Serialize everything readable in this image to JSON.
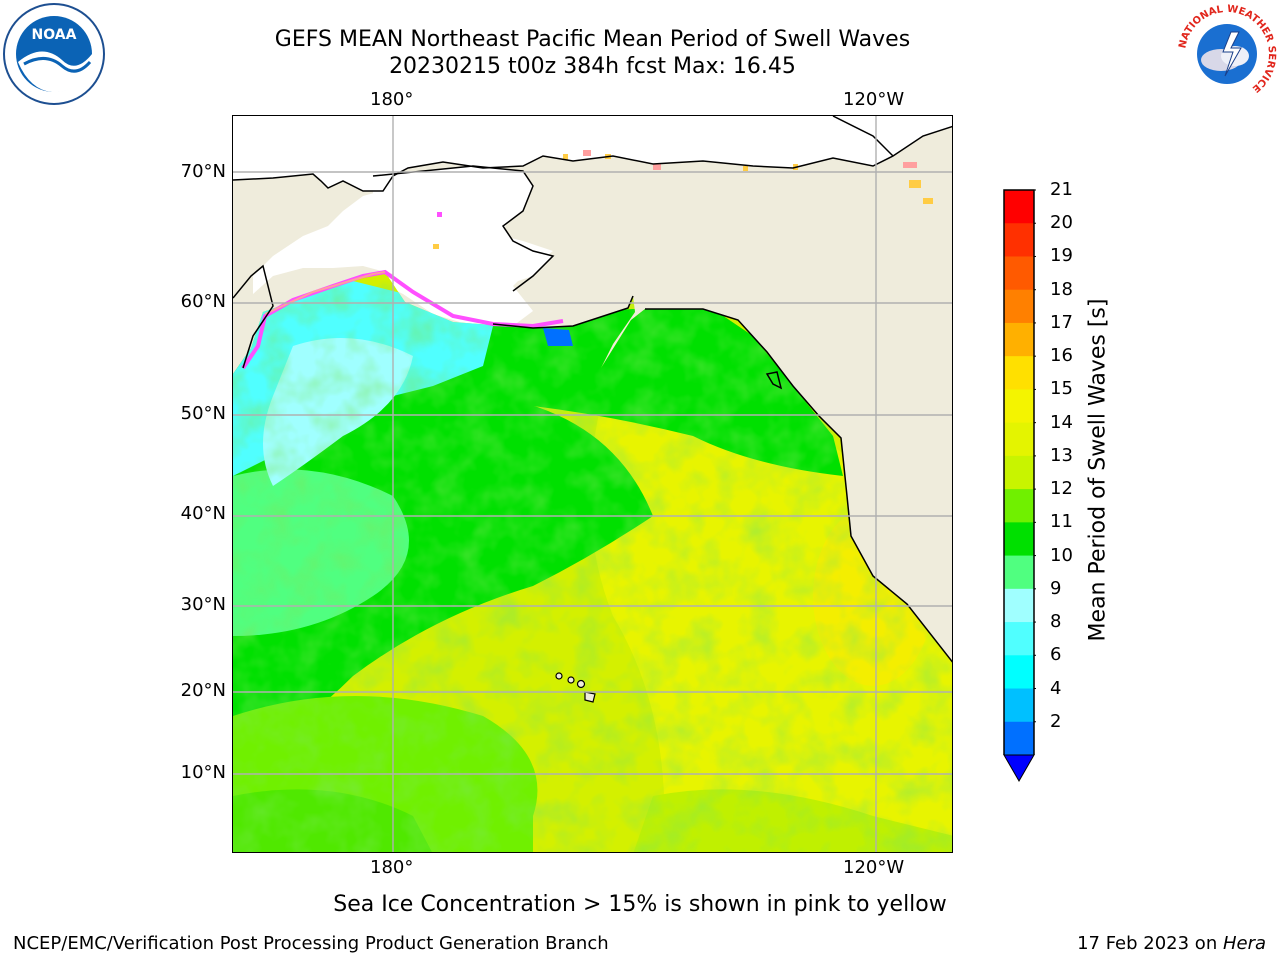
{
  "title_line1": "GEFS MEAN Northeast Pacific Mean Period of Swell Waves",
  "title_line2": "20230215 t00z 384h fcst   Max: 16.45",
  "logos": {
    "noaa_text": "NOAA",
    "nws_ring_text": "NATIONAL WEATHER SERVICE"
  },
  "map": {
    "lon_ticks_top": [
      "180°",
      "120°W"
    ],
    "lon_ticks_bottom": [
      "180°",
      "120°W"
    ],
    "lat_ticks": [
      "70°N",
      "60°N",
      "50°N",
      "40°N",
      "30°N",
      "20°N",
      "10°N"
    ],
    "land_color": "#efecdc",
    "ice_colors": [
      "#ff4fff",
      "#ff9f9f",
      "#ffcc44",
      "#ffff44"
    ]
  },
  "colorbar": {
    "title": "Mean Period of Swell Waves [s]",
    "labels": [
      "21",
      "20",
      "19",
      "18",
      "17",
      "16",
      "15",
      "14",
      "13",
      "12",
      "11",
      "10",
      "9",
      "8",
      "6",
      "4",
      "2"
    ],
    "colors_top_to_bottom": [
      "#ff0000",
      "#ff3000",
      "#ff5a00",
      "#ff8000",
      "#ffb000",
      "#ffe000",
      "#f4f400",
      "#e4f400",
      "#c8f400",
      "#70f000",
      "#00e000",
      "#50ff80",
      "#a0ffff",
      "#50ffff",
      "#00ffff",
      "#00c0ff",
      "#0070ff"
    ],
    "extend_color": "#0000ff"
  },
  "footnote": "Sea Ice Concentration > 15% is shown in pink to yellow",
  "credit_left": "NCEP/EMC/Verification Post Processing Product Generation Branch",
  "credit_right_date": "17 Feb 2023 on ",
  "credit_right_host": "Hera"
}
